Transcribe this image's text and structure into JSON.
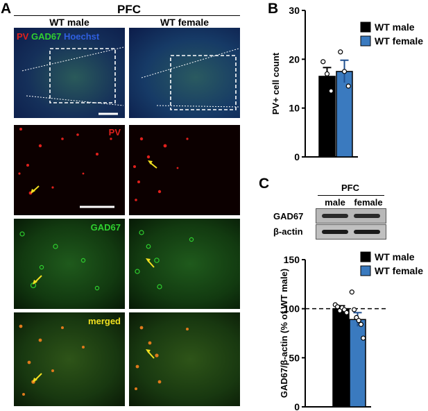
{
  "panel_labels": {
    "a": "A",
    "b": "B",
    "c": "C"
  },
  "region": "PFC",
  "columns": {
    "male": "WT male",
    "female": "WT female"
  },
  "channels": {
    "pv": "PV",
    "gad67": "GAD67",
    "hoechst": "Hoechst",
    "merged": "merged"
  },
  "colors": {
    "wt_male": "#000000",
    "wt_female": "#3a7abf",
    "pv": "#e0201c",
    "gad67": "#2fcf2f",
    "hoechst": "#2f5fe0",
    "merged": "#f0e020",
    "arrow": "#f2e021"
  },
  "blot": {
    "region": "PFC",
    "lanes": [
      "male",
      "female"
    ],
    "rows": [
      "GAD67",
      "β-actin"
    ]
  },
  "chart_data": [
    {
      "type": "bar",
      "panel": "B",
      "categories": [
        "WT male",
        "WT female"
      ],
      "values": [
        16.5,
        17.5
      ],
      "errors": [
        1.8,
        2.3
      ],
      "points": [
        [
          19.5,
          17.0,
          13.5
        ],
        [
          21.5,
          17.5,
          14.5
        ]
      ],
      "ylabel": "PV+ cell count",
      "ylim": [
        0,
        30
      ],
      "yticks": [
        0,
        10,
        20,
        30
      ],
      "legend": [
        "WT male",
        "WT female"
      ],
      "legend_position": "top-right"
    },
    {
      "type": "bar",
      "panel": "C",
      "categories": [
        "WT male",
        "WT female"
      ],
      "values": [
        100,
        89
      ],
      "errors": [
        3,
        7
      ],
      "points": [
        [
          104,
          102,
          98,
          101,
          99,
          96
        ],
        [
          117,
          99,
          91,
          88,
          84,
          70
        ]
      ],
      "ylabel": "GAD67/β-actin (% of WT male)",
      "ylim": [
        0,
        150
      ],
      "yticks": [
        0,
        50,
        100,
        150
      ],
      "reference_line": 100,
      "legend": [
        "WT male",
        "WT female"
      ],
      "legend_position": "top-right"
    }
  ]
}
